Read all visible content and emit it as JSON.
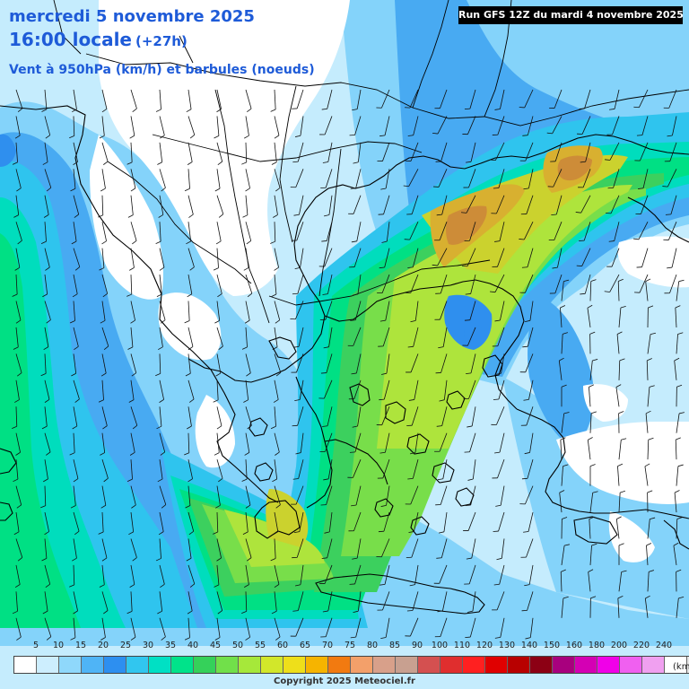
{
  "header": {
    "date_line": "mercredi 5 novembre 2025",
    "time_line": "16:00 locale",
    "lead_time": "(+27h)",
    "variable_line": "Vent à 950hPa (km/h) et barbules (noeuds)"
  },
  "run_info": "Run GFS 12Z du mardi 4 novembre 2025",
  "legend": {
    "ticks": [
      "5",
      "10",
      "15",
      "20",
      "25",
      "30",
      "35",
      "40",
      "45",
      "50",
      "55",
      "60",
      "65",
      "70",
      "75",
      "80",
      "85",
      "90",
      "100",
      "110",
      "120",
      "130",
      "140",
      "150",
      "160",
      "180",
      "200",
      "220",
      "240"
    ],
    "unit": "(km",
    "colors": [
      "#ffffff",
      "#cdeefe",
      "#8fd8fb",
      "#4fb4f6",
      "#2d8ff0",
      "#31c6ef",
      "#00e0c4",
      "#00e38a",
      "#35d15a",
      "#71e04a",
      "#a6e83a",
      "#d2e72a",
      "#eedf1a",
      "#f6b400",
      "#f27a10",
      "#f3a06a",
      "#d8a08a",
      "#c8a090",
      "#d45050",
      "#e02e2e",
      "#ff2020",
      "#e00000",
      "#b80000",
      "#8c0014",
      "#a8007e",
      "#d400b4",
      "#f000e8",
      "#f060f0",
      "#f0a0f0",
      "#ffffff",
      "#e6e6e6",
      "#b0b0b0"
    ]
  },
  "map": {
    "colors": {
      "c0": "#ffffff",
      "c1": "#c5ecfd",
      "c2": "#84d3fa",
      "c3": "#48aaf2",
      "c4": "#2f8fee",
      "c5": "#2fc4ee",
      "c6": "#00ddbd",
      "c7": "#00e084",
      "c8": "#3cd05e",
      "c9": "#78de4a",
      "c10": "#aee43c",
      "c11": "#cbd22e",
      "c12": "#d8b030",
      "c13": "#cd8c38",
      "coast": "#000000",
      "barb": "#111111"
    }
  },
  "copyright": "Copyright 2025 Meteociel.fr"
}
